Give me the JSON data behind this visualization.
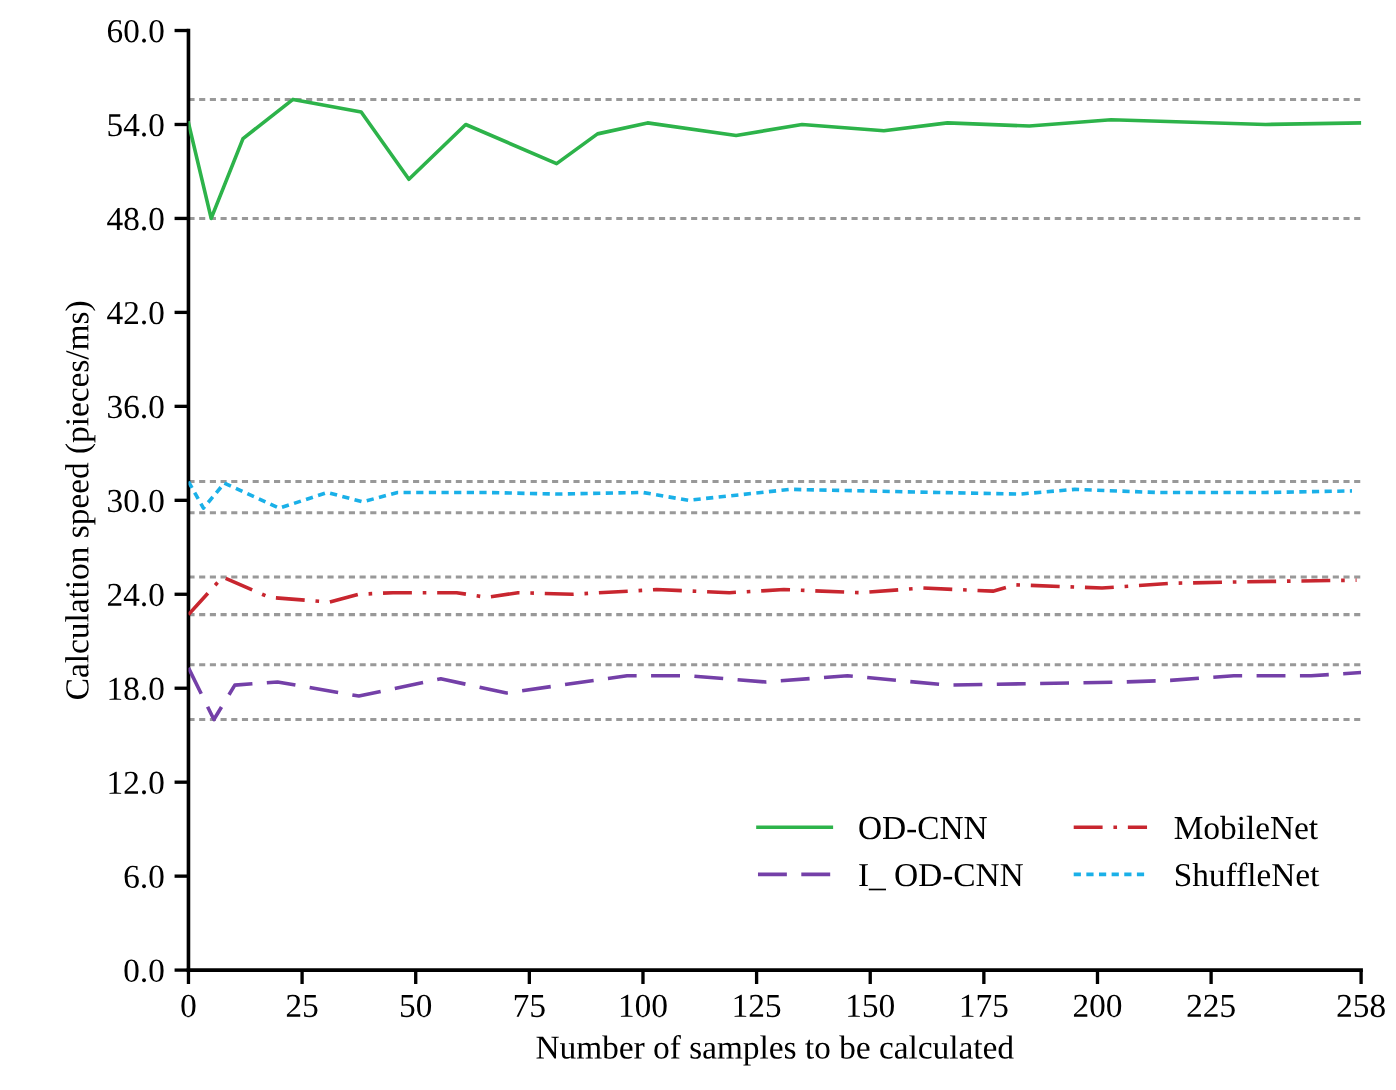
{
  "chart_data": {
    "type": "line",
    "xlabel": "Number of samples to be calculated",
    "ylabel": "Calculation speed (pieces/ms)",
    "xlim": [
      0,
      258
    ],
    "xticks": [
      0,
      25,
      50,
      75,
      100,
      125,
      150,
      175,
      200,
      225,
      258
    ],
    "ylim": [
      0,
      60
    ],
    "yticks": [
      {
        "value": 0,
        "label": "0.0"
      },
      {
        "value": 6,
        "label": "6.0"
      },
      {
        "value": 12,
        "label": "12.0"
      },
      {
        "value": 18,
        "label": "18.0"
      },
      {
        "value": 24,
        "label": "24.0"
      },
      {
        "value": 30,
        "label": "30.0"
      },
      {
        "value": 36,
        "label": "36.0"
      },
      {
        "value": 42,
        "label": "42.0"
      },
      {
        "value": 48,
        "label": "48.0"
      },
      {
        "value": 54,
        "label": "54.0"
      },
      {
        "value": 60,
        "label": "60.0"
      }
    ],
    "legend": "bottom right",
    "grid": false,
    "series": [
      {
        "name": "OD-CNN",
        "color": "#2db34a",
        "line_style": "solid",
        "x": [
          0,
          5,
          12,
          23,
          38,
          48.5,
          61,
          81,
          90,
          101,
          120.5,
          135,
          153,
          167,
          185,
          203,
          237,
          258
        ],
        "values": [
          54.1,
          48.0,
          53.1,
          55.6,
          54.8,
          50.5,
          54.0,
          51.5,
          53.4,
          54.1,
          53.3,
          54.0,
          53.6,
          54.1,
          53.9,
          54.3,
          54.0,
          54.1
        ]
      },
      {
        "name": "I_ OD-CNN",
        "color": "#7440a8",
        "line_style": "dashed",
        "x": [
          0,
          5.6,
          10.2,
          19.6,
          37.5,
          55.5,
          70,
          96.5,
          110,
          127,
          145,
          167,
          206,
          216,
          230,
          247,
          258
        ],
        "values": [
          19.3,
          16.0,
          18.2,
          18.4,
          17.5,
          18.6,
          17.7,
          18.8,
          18.8,
          18.4,
          18.8,
          18.2,
          18.4,
          18.5,
          18.8,
          18.8,
          19.0
        ]
      },
      {
        "name": "MobileNet",
        "color": "#c8262f",
        "line_style": "dashdot",
        "x": [
          0,
          7.5,
          17.8,
          31,
          37.5,
          45,
          59,
          65.7,
          72.5,
          84.5,
          103,
          119,
          131,
          148,
          161.5,
          177,
          182,
          201,
          216,
          233,
          257
        ],
        "values": [
          22.7,
          25.1,
          23.8,
          23.5,
          24.0,
          24.1,
          24.1,
          23.8,
          24.1,
          24.0,
          24.3,
          24.1,
          24.3,
          24.1,
          24.4,
          24.2,
          24.6,
          24.4,
          24.7,
          24.8,
          24.9
        ]
      },
      {
        "name": "ShuffleNet",
        "color": "#1ab0e8",
        "line_style": "dotted",
        "x": [
          0,
          3.3,
          7.9,
          20,
          30.6,
          38.3,
          46,
          65.7,
          81,
          100,
          110,
          132.4,
          165,
          183,
          195,
          213,
          237,
          256
        ],
        "values": [
          31.2,
          29.5,
          31.1,
          29.5,
          30.5,
          29.9,
          30.5,
          30.5,
          30.4,
          30.5,
          30.0,
          30.7,
          30.5,
          30.4,
          30.7,
          30.5,
          30.5,
          30.6
        ]
      }
    ],
    "ref_lines": [
      {
        "axis": "y",
        "value": 55.6,
        "color": "#999999",
        "line_style": "dotted"
      },
      {
        "axis": "y",
        "value": 48.0,
        "color": "#999999",
        "line_style": "dotted"
      },
      {
        "axis": "y",
        "value": 31.2,
        "color": "#999999",
        "line_style": "dotted"
      },
      {
        "axis": "y",
        "value": 29.2,
        "color": "#999999",
        "line_style": "dotted"
      },
      {
        "axis": "y",
        "value": 25.1,
        "color": "#999999",
        "line_style": "dotted"
      },
      {
        "axis": "y",
        "value": 22.7,
        "color": "#999999",
        "line_style": "dotted"
      },
      {
        "axis": "y",
        "value": 19.5,
        "color": "#999999",
        "line_style": "dotted"
      },
      {
        "axis": "y",
        "value": 16.0,
        "color": "#999999",
        "line_style": "dotted"
      }
    ]
  }
}
